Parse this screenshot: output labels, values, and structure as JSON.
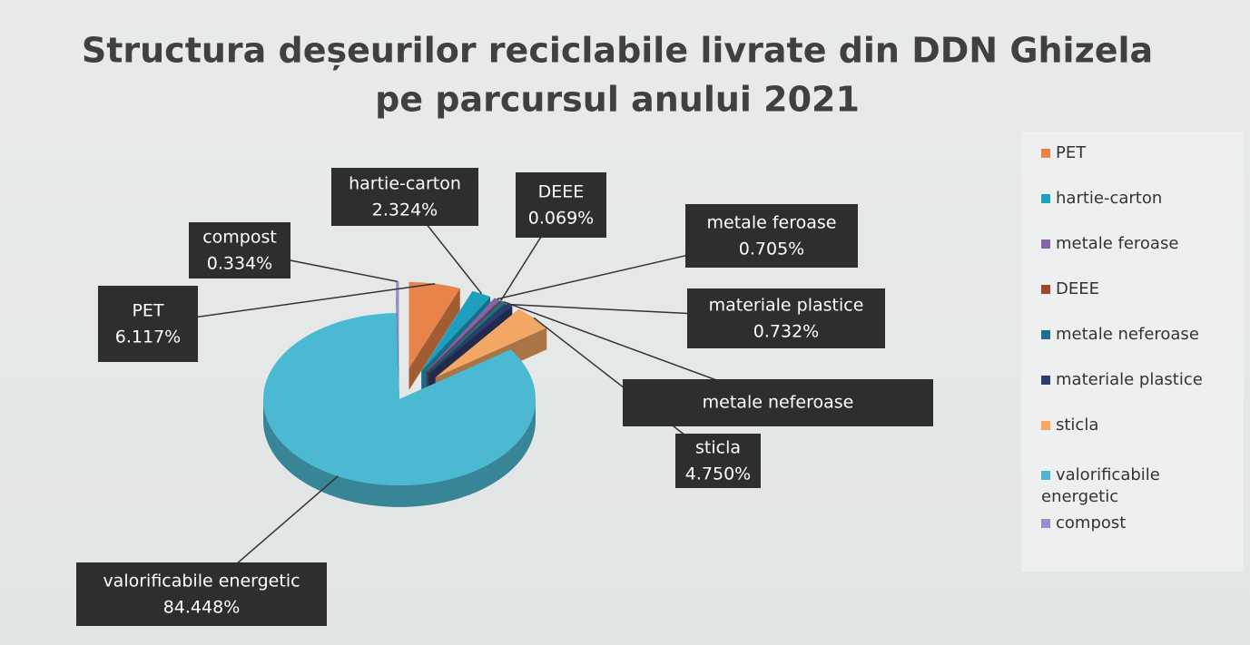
{
  "chart_data": {
    "type": "pie3d",
    "title": [
      "Structura deșeurilor reciclabile livrate din DDN Ghizela",
      "pe parcursul anului 2021"
    ],
    "categories": [
      "PET",
      "hartie-carton",
      "metale feroase",
      "DEEE",
      "metale neferoase",
      "materiale plastice",
      "sticla",
      "valorificabile energetic",
      "compost"
    ],
    "values": [
      6.117,
      2.324,
      0.705,
      0.069,
      0.521,
      0.732,
      4.75,
      84.448,
      0.334
    ],
    "value_labels": [
      "6.117%",
      "2.324%",
      "0.705%",
      "0.069%",
      null,
      "0.732%",
      "4.750%",
      "84.448%",
      "0.334%"
    ],
    "colors": [
      "#e8834a",
      "#1e9fc0",
      "#8266a8",
      "#a3432f",
      "#1f6f8b",
      "#2f3b6e",
      "#f2a765",
      "#4cb9d2",
      "#9a8dcc"
    ],
    "legend": "right"
  }
}
